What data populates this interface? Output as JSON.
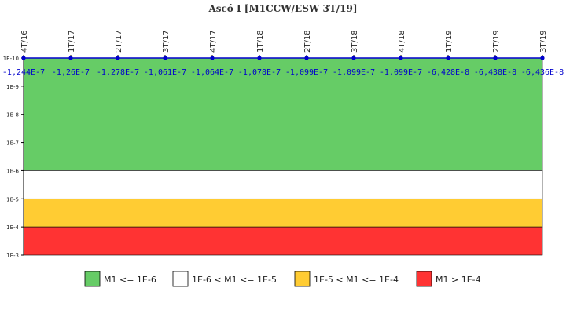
{
  "chart_data": {
    "type": "line",
    "title": "Ascó I [M1CCW/ESW 3T/19]",
    "x_categories": [
      "4T/16",
      "1T/17",
      "2T/17",
      "3T/17",
      "4T/17",
      "1T/18",
      "2T/18",
      "3T/18",
      "4T/18",
      "1T/19",
      "2T/19",
      "3T/19"
    ],
    "values": [
      -1.244e-07,
      -1.26e-07,
      -1.278e-07,
      -1.061e-07,
      -1.064e-07,
      -1.078e-07,
      -1.099e-07,
      -1.099e-07,
      -1.099e-07,
      -6.428e-08,
      -6.438e-08,
      -6.436e-08
    ],
    "value_labels": [
      "-1,244E-7",
      "-1,26E-7",
      "-1,278E-7",
      "-1,061E-7",
      "-1,064E-7",
      "-1,078E-7",
      "-1,099E-7",
      "-1,099E-7",
      "-1,099E-7",
      "-6,428E-8",
      "-6,438E-8",
      "-6,436E-8"
    ],
    "y_scale": "log",
    "y_axis_inverted": true,
    "ylim": [
      1e-10,
      0.001
    ],
    "y_ticks": [
      {
        "value": 1e-10,
        "label": "1E-10"
      },
      {
        "value": 1e-09,
        "label": "1E-9"
      },
      {
        "value": 1e-08,
        "label": "1E-8"
      },
      {
        "value": 1e-07,
        "label": "1E-7"
      },
      {
        "value": 1e-06,
        "label": "1E-6"
      },
      {
        "value": 1e-05,
        "label": "1E-5"
      },
      {
        "value": 0.0001,
        "label": "1E-4"
      },
      {
        "value": 0.001,
        "label": "1E-3"
      }
    ],
    "bands": [
      {
        "from": 1e-10,
        "to": 1e-06,
        "color": "#66cc66",
        "label": "M1 <= 1E-6"
      },
      {
        "from": 1e-06,
        "to": 1e-05,
        "color": "#ffffff",
        "label": "1E-6 < M1 <= 1E-5"
      },
      {
        "from": 1e-05,
        "to": 0.0001,
        "color": "#ffcc33",
        "label": "1E-5 < M1 <= 1E-4"
      },
      {
        "from": 0.0001,
        "to": 0.001,
        "color": "#ff3333",
        "label": "M1 > 1E-4"
      }
    ],
    "series_color": "#0000cc",
    "grid": false,
    "legend_position": "bottom"
  }
}
